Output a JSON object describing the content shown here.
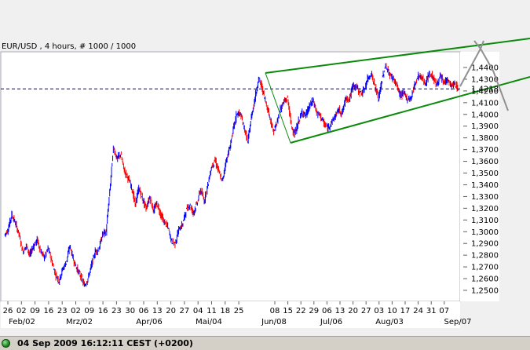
{
  "chart_data": {
    "type": "line",
    "title": "EUR/USD , 4 hours, # 1000 / 1000",
    "y_axis": {
      "ylim": [
        1.242,
        1.444
      ],
      "tick_values": [
        1.44,
        1.43,
        1.42,
        1.41,
        1.4,
        1.39,
        1.38,
        1.37,
        1.36,
        1.35,
        1.34,
        1.33,
        1.32,
        1.31,
        1.3,
        1.29,
        1.28,
        1.27,
        1.26,
        1.25
      ],
      "tick_labels": [
        "1,4400",
        "1,4300",
        "1,4200",
        "1,4100",
        "1,4000",
        "1,3900",
        "1,3800",
        "1,3700",
        "1,3600",
        "1,3500",
        "1,3400",
        "1,3300",
        "1,3200",
        "1,3100",
        "1,3000",
        "1,2900",
        "1,2800",
        "1,2700",
        "1,2600",
        "1,2500"
      ],
      "current_value": 1.4218,
      "current_label": "1,4218"
    },
    "x_axis": {
      "day_ticks": [
        "26",
        "02",
        "09",
        "16",
        "23",
        "02",
        "09",
        "16",
        "23",
        "30",
        "06",
        "13",
        "20",
        "27",
        "04",
        "11",
        "18",
        "25",
        "08",
        "15",
        "22",
        "29",
        "06",
        "13",
        "20",
        "27",
        "03",
        "10",
        "17",
        "24",
        "31",
        "07"
      ],
      "month_labels": [
        "Feb/02",
        "Mrz/02",
        "Apr/06",
        "Mai/04",
        "Jun/08",
        "Jul/06",
        "Aug/03",
        "Sep/07"
      ]
    },
    "series": [
      {
        "values": [
          1.297,
          1.302,
          1.315,
          1.307,
          1.298,
          1.283,
          1.288,
          1.28,
          1.288,
          1.293,
          1.283,
          1.278,
          1.286,
          1.275,
          1.264,
          1.258,
          1.268,
          1.274,
          1.288,
          1.276,
          1.268,
          1.262,
          1.254,
          1.26,
          1.272,
          1.283,
          1.285,
          1.298,
          1.3,
          1.335,
          1.372,
          1.362,
          1.366,
          1.352,
          1.346,
          1.338,
          1.323,
          1.337,
          1.328,
          1.32,
          1.33,
          1.318,
          1.324,
          1.315,
          1.308,
          1.304,
          1.292,
          1.29,
          1.302,
          1.306,
          1.318,
          1.323,
          1.316,
          1.324,
          1.336,
          1.326,
          1.34,
          1.355,
          1.361,
          1.351,
          1.343,
          1.36,
          1.371,
          1.387,
          1.401,
          1.4,
          1.389,
          1.376,
          1.398,
          1.414,
          1.431,
          1.422,
          1.41,
          1.399,
          1.385,
          1.392,
          1.405,
          1.411,
          1.413,
          1.39,
          1.383,
          1.394,
          1.402,
          1.399,
          1.407,
          1.412,
          1.401,
          1.399,
          1.392,
          1.388,
          1.393,
          1.398,
          1.404,
          1.401,
          1.414,
          1.413,
          1.425,
          1.423,
          1.418,
          1.42,
          1.43,
          1.435,
          1.424,
          1.413,
          1.43,
          1.442,
          1.434,
          1.431,
          1.425,
          1.416,
          1.418,
          1.413,
          1.414,
          1.426,
          1.433,
          1.431,
          1.426,
          1.435,
          1.432,
          1.425,
          1.432,
          1.427,
          1.43,
          1.424,
          1.426,
          1.4218
        ]
      }
    ],
    "grid": false,
    "legend": "none"
  },
  "status": {
    "text": "04 Sep 2009 16:12:11  CEST (+0200)"
  },
  "colors": {
    "background": "#ffffff",
    "outer_background": "#f0f0f0",
    "frame": "#a9a9b6",
    "price_up": "#0000ff",
    "price_down": "#ff0000",
    "channel_lines": "#0a8a0a",
    "current_price_line": "#00008b",
    "arrow": "#909090",
    "status_bar": "#d4d0c8"
  }
}
